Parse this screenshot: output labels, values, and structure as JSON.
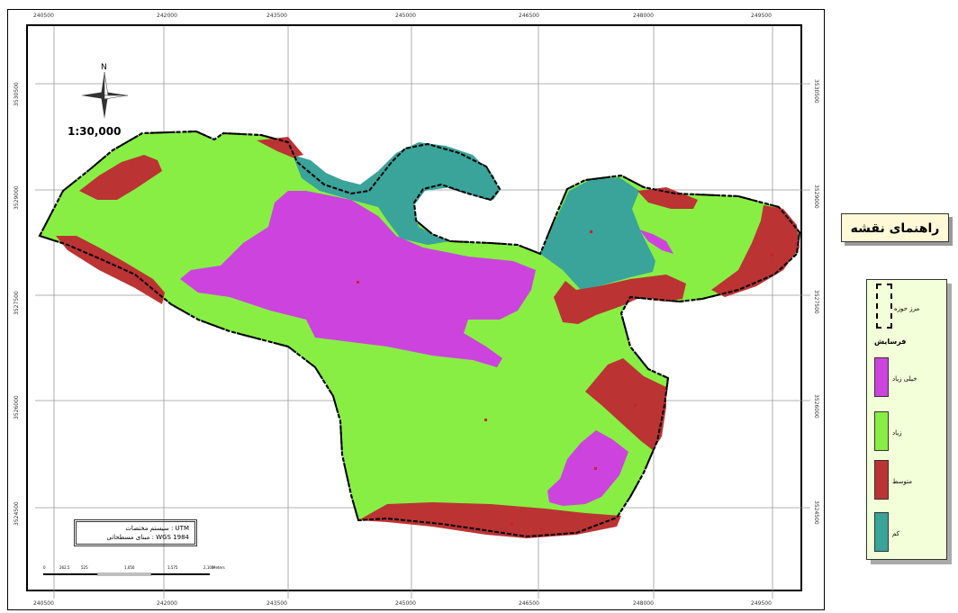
{
  "map": {
    "x_ticks": [
      "240500",
      "242000",
      "243500",
      "245000",
      "246500",
      "248000",
      "249500"
    ],
    "y_ticks": [
      "3530500",
      "3529000",
      "3527500",
      "3526000",
      "3524500"
    ],
    "scale": "1:30,000",
    "north_label": "N",
    "info": {
      "line1": "سیستم مختصات : UTM",
      "line2": "مبنای مسطحاتی : WGS 1984"
    },
    "scalebar_labels": [
      "0",
      "262.5",
      "525",
      "1,050",
      "1,575",
      "2,100",
      "Meters"
    ],
    "colors": {
      "very_high": "#cc44dd",
      "high": "#88ee44",
      "medium": "#bb3333",
      "low": "#3aa39a"
    }
  },
  "legend": {
    "title": "راهنمای نقشه",
    "boundary_label": "مرز حوزه",
    "group_title": "فرسایش",
    "items": [
      {
        "label": "خیلی زیاد",
        "color": "#cc44dd"
      },
      {
        "label": "زیاد",
        "color": "#88ee44"
      },
      {
        "label": "متوسط",
        "color": "#bb3333"
      },
      {
        "label": "کم",
        "color": "#3aa39a"
      }
    ]
  }
}
